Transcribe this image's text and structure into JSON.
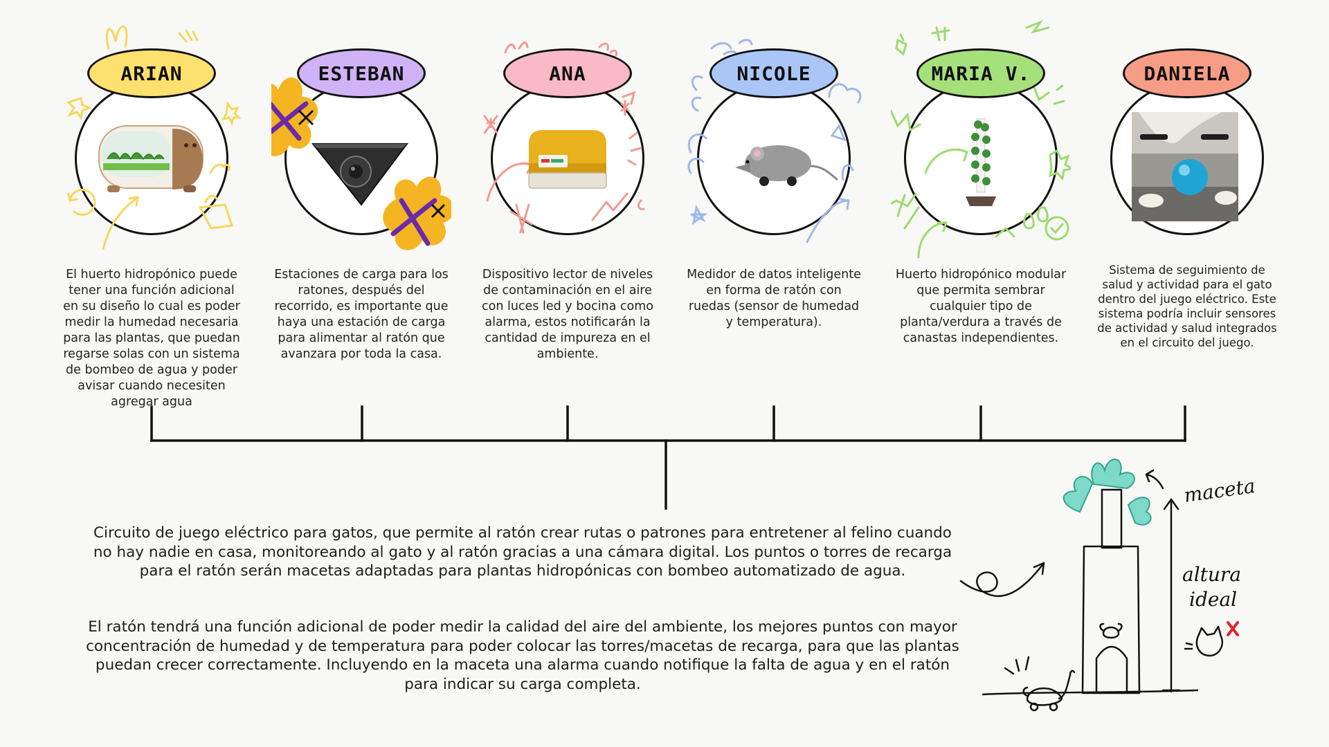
{
  "members": [
    {
      "name": "ARIAN",
      "pill_color": "#fde06d",
      "doodle_color": "#f7d75a",
      "description": "El huerto hidropónico puede tener una función adicional en su diseño lo cual es poder medir la humedad necesaria para las plantas, que puedan regarse solas con un sistema de bombeo de agua y poder avisar cuando necesiten agregar agua",
      "illustration": "hydroponic-garden-pod"
    },
    {
      "name": "ESTEBAN",
      "pill_color": "#d0b3f6",
      "doodle_color": "#f5b523",
      "description": "Estaciones de carga para los ratones, después del recorrido, es importante que haya una estación de carga para alimentar al ratón que avanzara por toda la casa.",
      "illustration": "triangular-charging-station"
    },
    {
      "name": "ANA",
      "pill_color": "#f9b9c6",
      "doodle_color": "#f29a92",
      "description": "Dispositivo lector de niveles de contaminación en el aire con luces led y bocina como alarma, estos notificarán la cantidad de impureza en el ambiente.",
      "illustration": "air-quality-sensor"
    },
    {
      "name": "NICOLE",
      "pill_color": "#a9c6f7",
      "doodle_color": "#9fb8ea",
      "description": "Medidor de datos inteligente en forma de ratón con ruedas (sensor de humedad y temperatura).",
      "illustration": "mouse-on-wheels"
    },
    {
      "name": "MARIA V.",
      "pill_color": "#a6e07a",
      "doodle_color": "#9bdb6e",
      "description": "Huerto hidropónico modular que permita sembrar cualquier tipo de planta/verdura a través de canastas independientes.",
      "illustration": "vertical-plant-tower"
    },
    {
      "name": "DANIELA",
      "pill_color": "#f79d86",
      "doodle_color": "#f79d86",
      "description": "Sistema de seguimiento de salud y actividad para el gato dentro del juego eléctrico. Este sistema podría incluir sensores de actividad y salud integrados en el circuito del juego.",
      "illustration": "cat-with-ball"
    }
  ],
  "main_paragraphs": [
    "Circuito de juego eléctrico para gatos, que permite al ratón crear rutas o patrones para entretener al felino cuando no hay nadie en casa, monitoreando al gato y al ratón gracias a una cámara digital. Los puntos o torres de recarga para el ratón serán macetas adaptadas para plantas hidropónicas con bombeo automatizado de agua.",
    "El ratón tendrá una función adicional de poder medir la calidad del aire del ambiente, los mejores puntos con mayor concentración de humedad y de temperatura para poder colocar las torres/macetas de recarga, para que las plantas puedan crecer correctamente. Incluyendo en la maceta una alarma cuando notifique la falta de agua y en el ratón para indicar su carga completa."
  ],
  "sketch": {
    "label_top": "maceta",
    "label_height_1": "altura",
    "label_height_2": "ideal",
    "illustration": "charging-tower-planter-sketch"
  },
  "colors": {
    "line": "#111111",
    "background": "#f8f8f6"
  }
}
